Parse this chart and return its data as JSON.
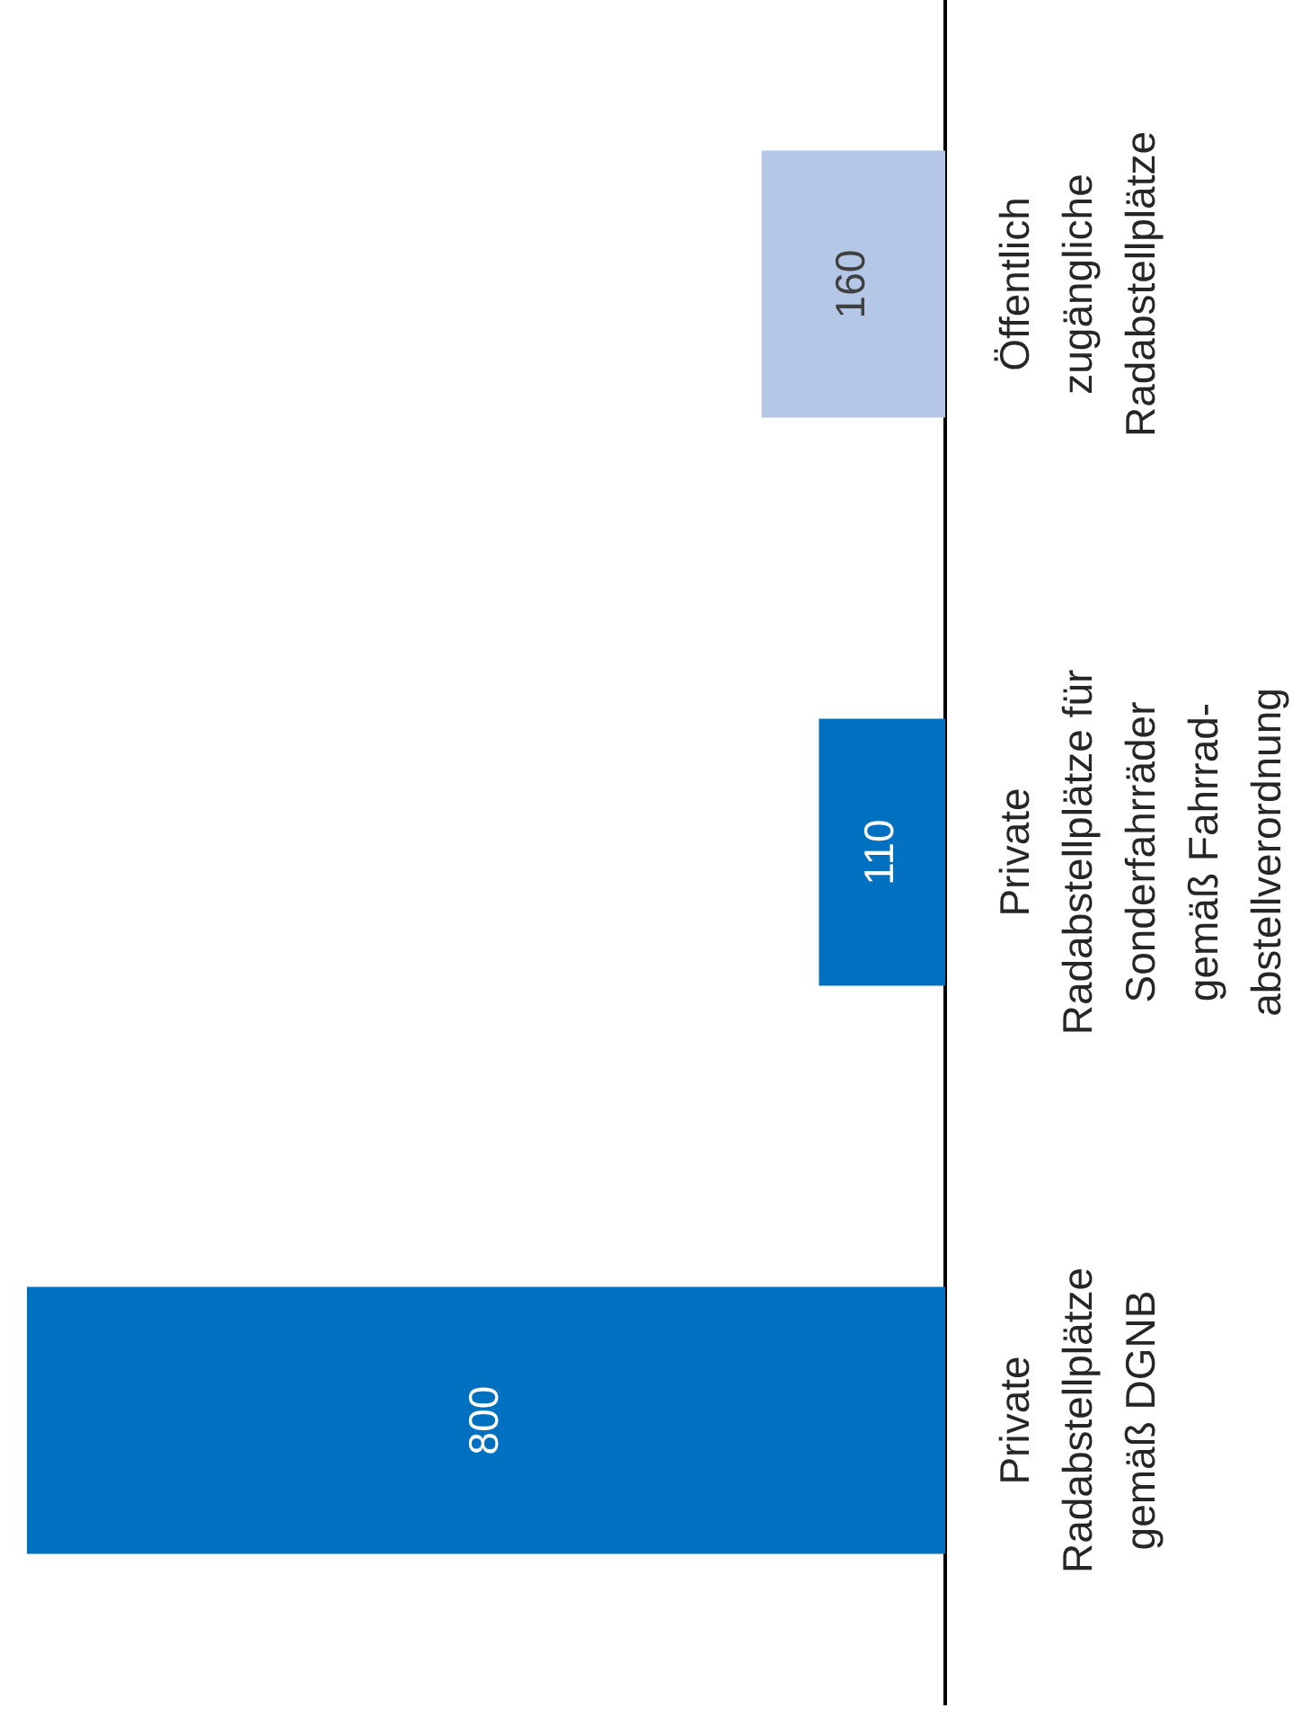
{
  "chart_data": {
    "type": "bar",
    "orientation": "horizontal",
    "categories": [
      "Öffentlich zugängliche Radabstellplätze",
      "Private Radabstellplätze für Sonderfahrräder gemäß Fahrrad-abstellverordnung",
      "Private Radabstellplätze gemäß DGNB"
    ],
    "values": [
      160,
      110,
      800
    ],
    "colors": [
      "#b4c7e7",
      "#0070c0",
      "#0070c0"
    ],
    "data_labels": true,
    "legend": false
  }
}
